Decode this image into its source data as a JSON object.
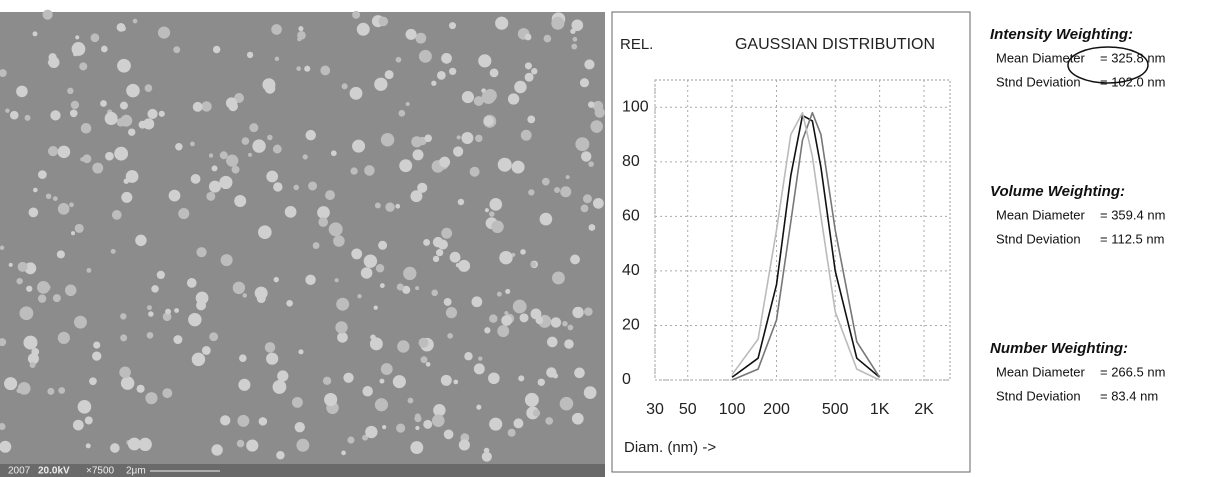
{
  "image_caption": [
    "2007",
    "20.0kV",
    "×7500",
    "2μm"
  ],
  "chart_data": {
    "type": "line",
    "title": "GAUSSIAN DISTRIBUTION",
    "y_label": "REL.",
    "x_label": "Diam. (nm) ->",
    "log_x": true,
    "grid": true,
    "xlim": [
      30,
      3000
    ],
    "xticks": [
      30,
      50,
      100,
      200,
      500,
      {
        "value": 1000,
        "label": "1K"
      },
      {
        "value": 2000,
        "label": "2K"
      }
    ],
    "ylim": [
      0,
      110
    ],
    "yticks": [
      0,
      20,
      40,
      60,
      80,
      100
    ],
    "x": [
      100,
      150,
      200,
      250,
      300,
      350,
      400,
      500,
      700,
      1000
    ],
    "series": [
      {
        "color": "#111111",
        "values": [
          1,
          8,
          35,
          75,
          97,
          95,
          78,
          40,
          8,
          1
        ]
      },
      {
        "color": "#777777",
        "values": [
          0,
          4,
          22,
          58,
          88,
          98,
          90,
          55,
          14,
          1
        ]
      },
      {
        "color": "#bbbbbb",
        "values": [
          2,
          15,
          55,
          90,
          98,
          82,
          60,
          25,
          4,
          0
        ]
      }
    ]
  },
  "stats": [
    {
      "heading": "Intensity Weighting:",
      "rows": [
        [
          "Mean Diameter",
          "= 325.8 nm"
        ],
        [
          "Stnd Deviation",
          "= 102.0 nm"
        ]
      ]
    },
    {
      "heading": "Volume Weighting:",
      "rows": [
        [
          "Mean Diameter",
          "= 359.4 nm"
        ],
        [
          "Stnd Deviation",
          "= 112.5 nm"
        ]
      ]
    },
    {
      "heading": "Number Weighting:",
      "rows": [
        [
          "Mean Diameter",
          "= 266.5 nm"
        ],
        [
          "Stnd Deviation",
          "= 83.4 nm"
        ]
      ]
    }
  ]
}
